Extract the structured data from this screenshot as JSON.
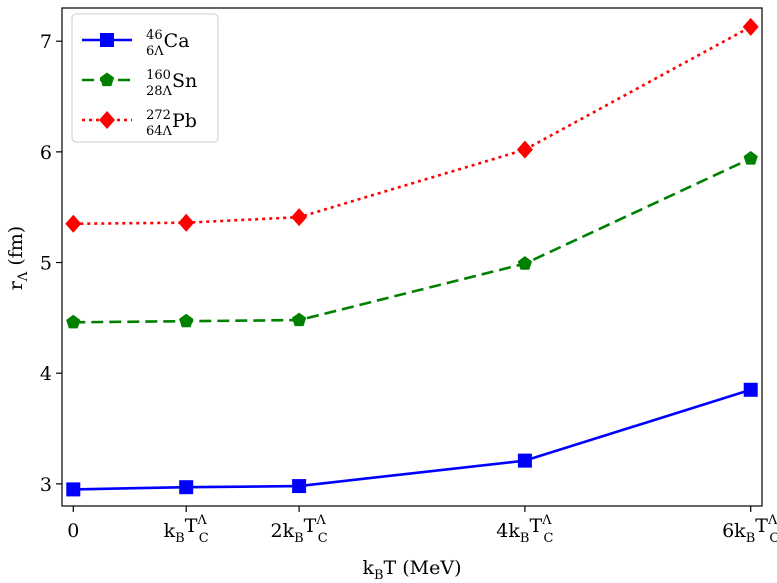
{
  "chart_data": {
    "type": "line",
    "title": "",
    "xlabel": {
      "base": "k",
      "sub": "B",
      "rest": "T (MeV)"
    },
    "ylabel": {
      "base": "r",
      "sub": "Λ",
      "rest": " (fm)"
    },
    "x": [
      0,
      1,
      2,
      4,
      6
    ],
    "x_tick_labels": [
      {
        "coef": "0",
        "symbol": false
      },
      {
        "coef": "",
        "symbol": true
      },
      {
        "coef": "2",
        "symbol": true
      },
      {
        "coef": "4",
        "symbol": true
      },
      {
        "coef": "6",
        "symbol": true
      }
    ],
    "x_tick_symbol": {
      "k": "k",
      "k_sub": "B",
      "T": "T",
      "T_sub": "C",
      "T_sup": "Λ"
    },
    "xlim": [
      -0.1,
      6.1
    ],
    "ylim": [
      2.8,
      7.3
    ],
    "yticks": [
      3,
      4,
      5,
      6,
      7
    ],
    "legend_position": "top-left",
    "series": [
      {
        "name": "Ca",
        "mass": "46",
        "sub": "6Λ",
        "color": "#0000ff",
        "dash": "solid",
        "marker": "square",
        "values": [
          2.95,
          2.97,
          2.98,
          3.21,
          3.85
        ]
      },
      {
        "name": "Sn",
        "mass": "160",
        "sub": "28Λ",
        "color": "#008000",
        "dash": "dashed",
        "marker": "pentagon",
        "values": [
          4.46,
          4.47,
          4.48,
          4.99,
          5.94
        ]
      },
      {
        "name": "Pb",
        "mass": "272",
        "sub": "64Λ",
        "color": "#ff0000",
        "dash": "dotted",
        "marker": "diamond",
        "values": [
          5.35,
          5.36,
          5.41,
          6.02,
          7.13
        ]
      }
    ]
  }
}
